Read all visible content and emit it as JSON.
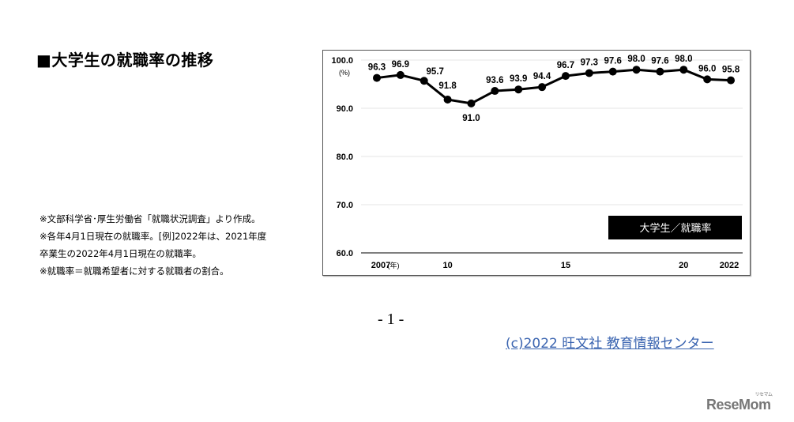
{
  "page": {
    "title": "■大学生の就職率の推移",
    "notes": [
      "※文部科学省･厚生労働省「就職状況調査」より作成。",
      "※各年4月1日現在の就職率。[例]2022年は、2021年度",
      "卒業生の2022年4月1日現在の就職率。",
      "※就職率＝就職希望者に対する就職者の割合。"
    ],
    "page_number": "- 1 -",
    "copyright": "(c)2022  旺文社  教育情報センター",
    "logo": "ReseMom",
    "logo_sub": "リセマム"
  },
  "chart_data": {
    "type": "line",
    "title": "大学生／就職率",
    "legend": "大学生／就職率",
    "legend_position": "lower-right",
    "xlabel": "(年)",
    "ylabel": "(%)",
    "ylim": [
      60,
      100
    ],
    "grid": true,
    "y_ticks": [
      "100.0",
      "90.0",
      "80.0",
      "70.0",
      "60.0"
    ],
    "x_tick_labels": [
      {
        "year": 2007,
        "label": "2007"
      },
      {
        "year": 2010,
        "label": "10"
      },
      {
        "year": 2015,
        "label": "15"
      },
      {
        "year": 2020,
        "label": "20"
      },
      {
        "year": 2022,
        "label": "2022"
      }
    ],
    "x": [
      2007,
      2008,
      2009,
      2010,
      2011,
      2012,
      2013,
      2014,
      2015,
      2016,
      2017,
      2018,
      2019,
      2020,
      2021,
      2022
    ],
    "series": [
      {
        "name": "大学生／就職率",
        "color": "#000000",
        "values": [
          96.3,
          96.9,
          95.7,
          91.8,
          91.0,
          93.6,
          93.9,
          94.4,
          96.7,
          97.3,
          97.6,
          98.0,
          97.6,
          98.0,
          96.0,
          95.8
        ]
      }
    ]
  }
}
